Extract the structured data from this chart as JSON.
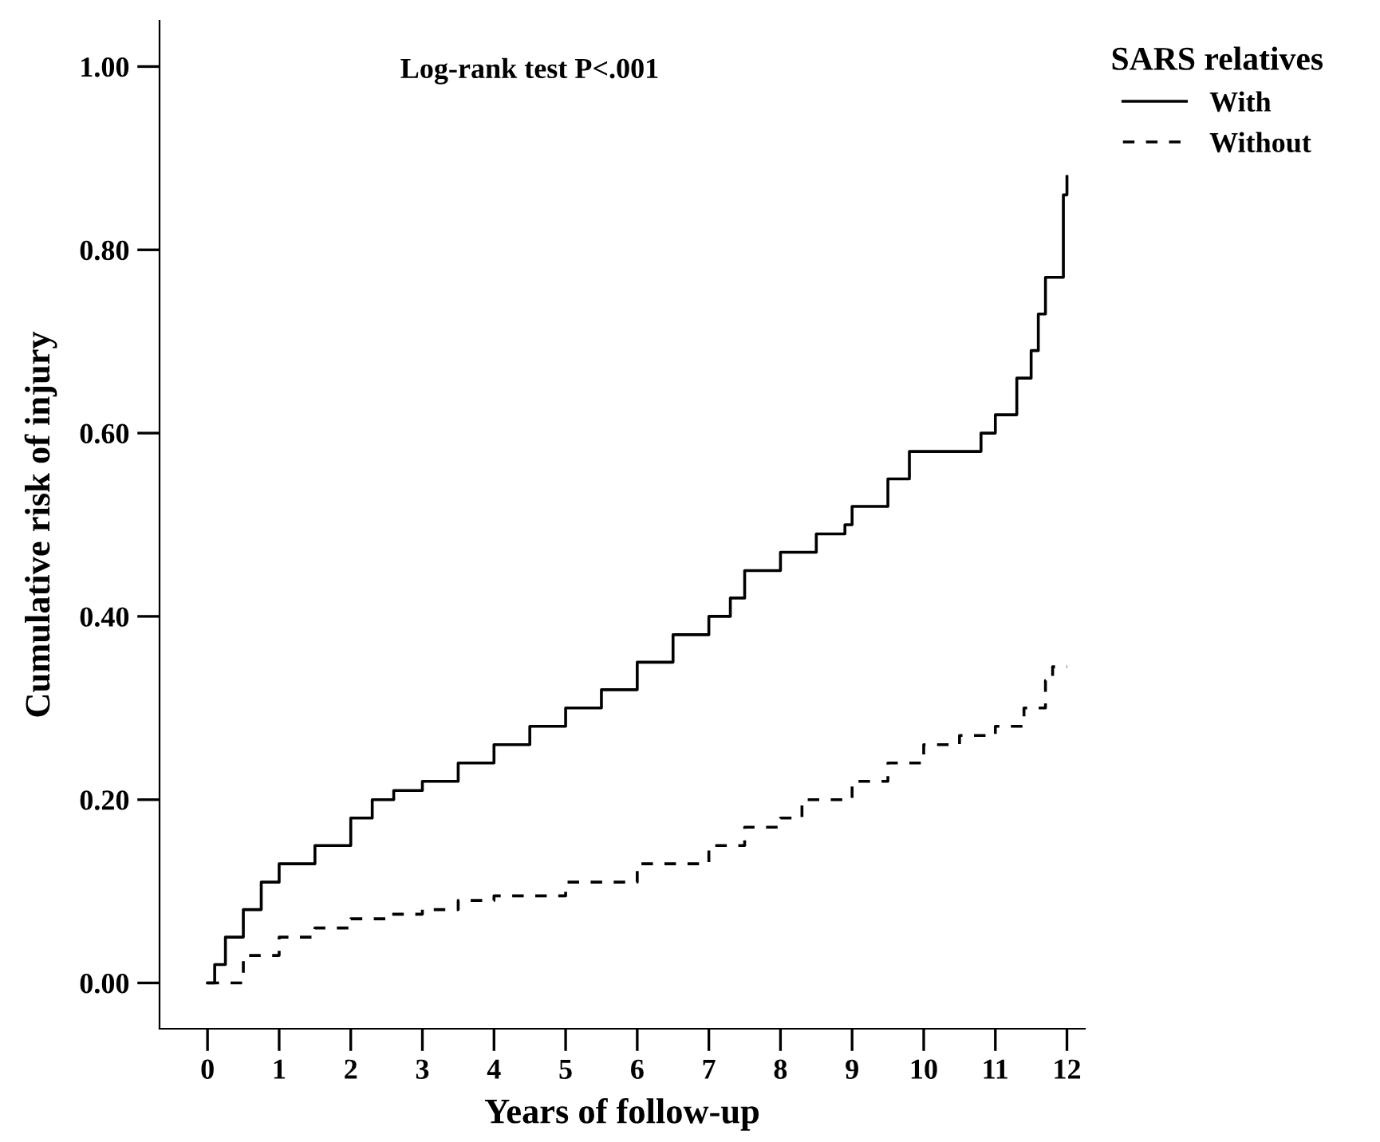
{
  "chart_data": {
    "type": "step",
    "xlabel": "Years of follow-up",
    "ylabel": "Cumulative risk of injury",
    "legend_title": "SARS relatives",
    "annotations": [
      "Log-rank test P<.001"
    ],
    "series": [
      {
        "name": "With",
        "color": "#000000",
        "line_style": "solid",
        "x": [
          0,
          0.1,
          0.25,
          0.5,
          0.75,
          1,
          1.5,
          2,
          2.3,
          2.6,
          3,
          3.5,
          4,
          4.5,
          5,
          5.5,
          6,
          6.5,
          7,
          7.3,
          7.5,
          8,
          8.5,
          8.9,
          9,
          9.5,
          9.8,
          10.6,
          10.8,
          11,
          11.3,
          11.5,
          11.6,
          11.7,
          11.9,
          11.95,
          12
        ],
        "values": [
          0,
          0.02,
          0.05,
          0.08,
          0.11,
          0.13,
          0.15,
          0.18,
          0.2,
          0.21,
          0.22,
          0.24,
          0.26,
          0.28,
          0.3,
          0.32,
          0.35,
          0.38,
          0.4,
          0.42,
          0.45,
          0.47,
          0.49,
          0.5,
          0.52,
          0.55,
          0.58,
          0.58,
          0.6,
          0.62,
          0.66,
          0.69,
          0.73,
          0.77,
          0.77,
          0.86,
          0.88
        ]
      },
      {
        "name": "Without",
        "color": "#000000",
        "line_style": "dashed",
        "x": [
          0,
          0.5,
          1,
          1.5,
          2,
          2.5,
          3,
          3.5,
          4,
          5,
          6,
          7,
          7.5,
          8,
          8.3,
          9,
          9.5,
          10,
          10.5,
          11,
          11.4,
          11.7,
          11.8,
          12
        ],
        "values": [
          0,
          0.03,
          0.05,
          0.06,
          0.07,
          0.075,
          0.08,
          0.09,
          0.095,
          0.11,
          0.13,
          0.15,
          0.17,
          0.18,
          0.2,
          0.22,
          0.24,
          0.26,
          0.27,
          0.28,
          0.3,
          0.33,
          0.345,
          0.345
        ]
      }
    ],
    "xlim": [
      -0.67,
      12.25
    ],
    "xticks": [
      0,
      1,
      2,
      3,
      4,
      5,
      6,
      7,
      8,
      9,
      10,
      11,
      12
    ],
    "ylim": [
      -0.05,
      1.05
    ],
    "yticks": [
      {
        "value": 0,
        "label": "0.00"
      },
      {
        "value": 0.2,
        "label": "0.20"
      },
      {
        "value": 0.4,
        "label": "0.40"
      },
      {
        "value": 0.6,
        "label": "0.60"
      },
      {
        "value": 0.8,
        "label": "0.80"
      },
      {
        "value": 1.0,
        "label": "1.00"
      }
    ],
    "grid": false,
    "legend": "top right"
  }
}
